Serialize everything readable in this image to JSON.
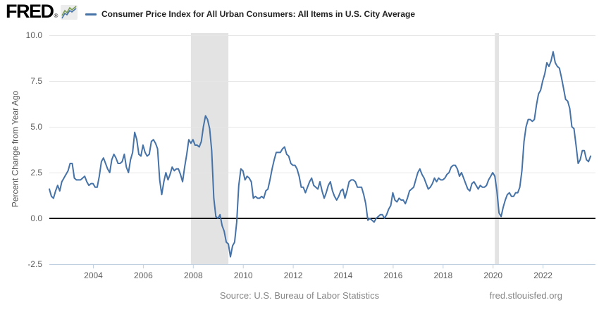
{
  "header": {
    "logo": "FRED",
    "logo_reg": "®",
    "series_title": "Consumer Price Index for All Urban Consumers: All Items in U.S. City Average"
  },
  "footer": {
    "source": "Source: U.S. Bureau of Labor Statistics",
    "site": "fred.stlouisfed.org"
  },
  "colors": {
    "line": "#4572a7",
    "recession": "#e3e3e3",
    "grid": "#e6e6e6",
    "zero_line": "#000000",
    "axis": "#c0d0e0",
    "tick_label": "#606060",
    "logo_green": "#7a9c51"
  },
  "chart_data": {
    "type": "line",
    "title": "Consumer Price Index for All Urban Consumers: All Items in U.S. City Average",
    "ylabel": "Percent Change from Year Ago",
    "xlabel": "",
    "unit": "percent",
    "frequency": "monthly",
    "start": "2002-04",
    "end": "2023-12",
    "ylim": [
      -2.5,
      10.0
    ],
    "y_ticks": [
      "10.0",
      "7.5",
      "5.0",
      "2.5",
      "0.0",
      "-2.5"
    ],
    "x_ticks": [
      2004,
      2006,
      2008,
      2010,
      2012,
      2014,
      2016,
      2018,
      2020,
      2022
    ],
    "grid": true,
    "zero_line": true,
    "legend_position": "top",
    "recessions": [
      {
        "start": 2007.917,
        "end": 2009.417
      },
      {
        "start": 2020.083,
        "end": 2020.25
      }
    ],
    "series": [
      {
        "name": "Consumer Price Index for All Urban Consumers: All Items in U.S. City Average",
        "values": [
          1.6,
          1.2,
          1.1,
          1.5,
          1.8,
          1.5,
          2.0,
          2.2,
          2.4,
          2.6,
          3.0,
          3.0,
          2.2,
          2.1,
          2.1,
          2.1,
          2.2,
          2.3,
          2.0,
          1.8,
          1.9,
          1.9,
          1.7,
          1.7,
          2.3,
          3.1,
          3.3,
          3.0,
          2.7,
          2.5,
          3.2,
          3.5,
          3.3,
          3.0,
          3.0,
          3.1,
          3.5,
          2.8,
          2.5,
          3.2,
          3.6,
          4.7,
          4.3,
          3.5,
          3.4,
          4.0,
          3.6,
          3.4,
          3.5,
          4.2,
          4.3,
          4.1,
          3.8,
          2.1,
          1.3,
          2.0,
          2.5,
          2.1,
          2.4,
          2.8,
          2.6,
          2.7,
          2.7,
          2.4,
          2.0,
          2.8,
          3.5,
          4.3,
          4.1,
          4.3,
          4.0,
          4.0,
          3.9,
          4.2,
          5.0,
          5.6,
          5.4,
          4.9,
          3.7,
          1.1,
          0.1,
          0.0,
          0.2,
          -0.4,
          -0.7,
          -1.3,
          -1.4,
          -2.1,
          -1.5,
          -1.3,
          -0.2,
          1.8,
          2.7,
          2.6,
          2.1,
          2.3,
          2.2,
          2.0,
          1.1,
          1.2,
          1.1,
          1.1,
          1.2,
          1.1,
          1.5,
          1.6,
          2.1,
          2.7,
          3.2,
          3.6,
          3.6,
          3.6,
          3.8,
          3.9,
          3.5,
          3.4,
          3.0,
          2.9,
          2.9,
          2.7,
          2.3,
          1.7,
          1.7,
          1.4,
          1.7,
          2.0,
          2.2,
          1.8,
          1.7,
          1.6,
          2.0,
          1.5,
          1.1,
          1.4,
          1.8,
          2.0,
          1.5,
          1.2,
          1.0,
          1.2,
          1.5,
          1.6,
          1.1,
          1.5,
          2.0,
          2.1,
          2.1,
          2.0,
          1.7,
          1.7,
          1.7,
          1.3,
          0.8,
          -0.1,
          0.0,
          -0.1,
          -0.2,
          0.0,
          0.1,
          0.2,
          0.2,
          0.0,
          0.2,
          0.5,
          0.7,
          1.4,
          1.0,
          0.9,
          1.1,
          1.0,
          1.0,
          0.8,
          1.1,
          1.5,
          1.6,
          1.7,
          2.1,
          2.5,
          2.7,
          2.4,
          2.2,
          1.9,
          1.6,
          1.7,
          1.9,
          2.2,
          2.0,
          2.2,
          2.1,
          2.1,
          2.2,
          2.4,
          2.5,
          2.8,
          2.9,
          2.9,
          2.7,
          2.3,
          2.5,
          2.2,
          1.9,
          1.6,
          1.5,
          1.9,
          2.0,
          1.8,
          1.6,
          1.8,
          1.7,
          1.7,
          1.8,
          2.1,
          2.3,
          2.5,
          2.3,
          1.5,
          0.3,
          0.1,
          0.6,
          1.0,
          1.3,
          1.4,
          1.2,
          1.2,
          1.4,
          1.4,
          1.7,
          2.6,
          4.2,
          5.0,
          5.4,
          5.4,
          5.3,
          5.4,
          6.2,
          6.8,
          7.0,
          7.5,
          7.9,
          8.5,
          8.3,
          8.6,
          9.1,
          8.5,
          8.3,
          8.2,
          7.7,
          7.1,
          6.5,
          6.4,
          6.0,
          5.0,
          4.9,
          4.0,
          3.0,
          3.2,
          3.7,
          3.7,
          3.2,
          3.1,
          3.4
        ]
      }
    ]
  }
}
